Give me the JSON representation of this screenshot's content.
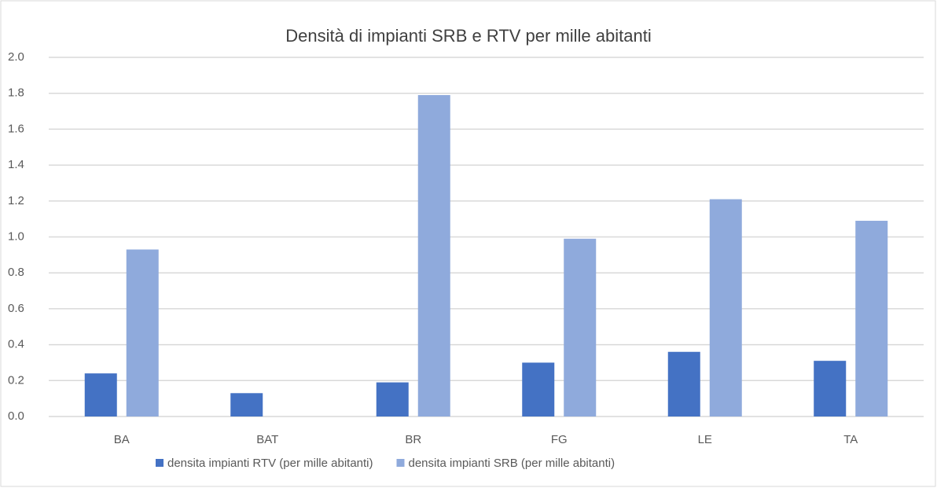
{
  "chart_data": {
    "type": "bar",
    "title": "Densità di impianti SRB e RTV per mille abitanti",
    "categories": [
      "BA",
      "BAT",
      "BR",
      "FG",
      "LE",
      "TA"
    ],
    "series": [
      {
        "name": "densita impianti RTV (per mille abitanti)",
        "color": "#4472c4",
        "values": [
          0.24,
          0.13,
          0.19,
          0.3,
          0.36,
          0.31
        ]
      },
      {
        "name": "densita impianti SRB (per mille abitanti)",
        "color": "#8faadc",
        "values": [
          0.93,
          0,
          1.79,
          0.99,
          1.21,
          1.09
        ]
      }
    ],
    "ylim": [
      0,
      2
    ],
    "yticks": [
      {
        "value": 0,
        "label": "0.0"
      },
      0.2,
      0.4,
      0.6,
      0.8,
      {
        "value": 1,
        "label": "1.0"
      },
      1.2,
      1.4,
      1.6,
      1.8,
      {
        "value": 2,
        "label": "2.0"
      }
    ],
    "grid": true,
    "legend": "bottom"
  }
}
